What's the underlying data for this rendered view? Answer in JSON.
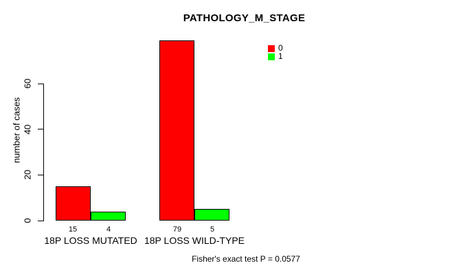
{
  "chart_data": {
    "type": "bar",
    "title": "PATHOLOGY_M_STAGE",
    "categories": [
      "18P LOSS MUTATED",
      "18P LOSS WILD-TYPE"
    ],
    "series": [
      {
        "name": "0",
        "color": "#FF0000",
        "values": [
          15,
          79
        ]
      },
      {
        "name": "1",
        "color": "#00FF00",
        "values": [
          4,
          5
        ]
      }
    ],
    "ylabel": "number of cases",
    "xlabel": "",
    "ylim": [
      0,
      80
    ],
    "yticks": [
      0,
      20,
      40,
      60
    ],
    "grid": false,
    "legend_position": "top-right",
    "bar_border_color": "#000000",
    "axis_color": "#000000",
    "background_color": "#FFFFFF",
    "annotation": "Fisher's exact test P = 0.0577"
  }
}
